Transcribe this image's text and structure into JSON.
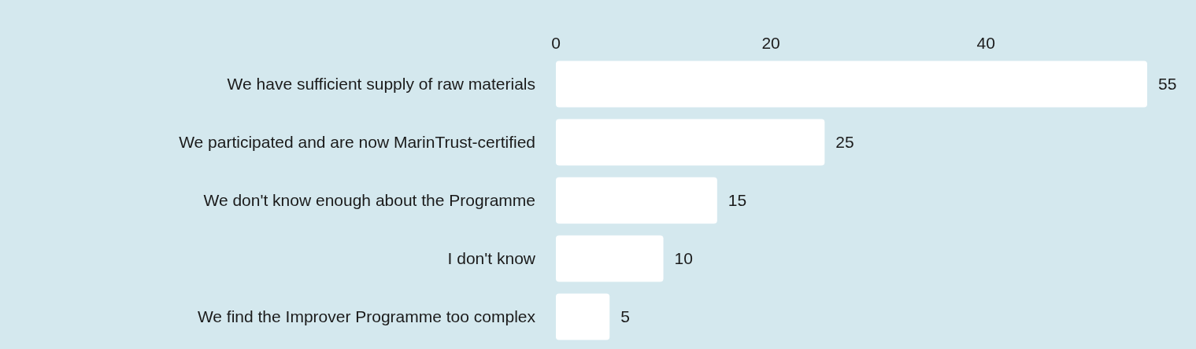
{
  "chart_data": {
    "type": "bar",
    "orientation": "horizontal",
    "categories": [
      "We have sufficient supply of raw materials",
      "We participated and are now MarinTrust-certified",
      "We don't know enough about the Programme",
      "I don't know",
      "We find the Improver Programme too complex"
    ],
    "values": [
      55,
      25,
      15,
      10,
      5
    ],
    "color": "#ffffff",
    "xlim": [
      0,
      55
    ],
    "xticks": [
      0,
      20,
      40
    ],
    "grid": false,
    "data_labels": true
  }
}
